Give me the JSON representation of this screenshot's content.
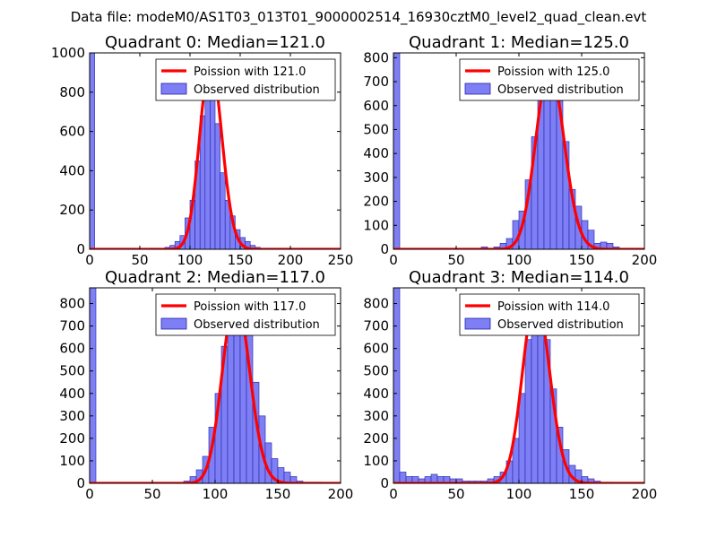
{
  "suptitle": "Data file: modeM0/AS1T03_013T01_9000002514_16930cztM0_level2_quad_clean.evt",
  "colors": {
    "hist_fill": "#7f7ff5",
    "hist_edge": "#2222aa",
    "curve": "#ff0000"
  },
  "chart_data": [
    {
      "type": "bar",
      "title": "Quadrant 0: Median=121.0",
      "median": 121,
      "legend": {
        "curve": "Poission with 121.0",
        "hist": "Observed distribution",
        "position": "top-right"
      },
      "xlim": [
        0,
        250
      ],
      "ylim": [
        0,
        1000
      ],
      "xticks": [
        0,
        50,
        100,
        150,
        200,
        250
      ],
      "yticks": [
        0,
        200,
        400,
        600,
        800,
        1000
      ],
      "bin_width": 5,
      "bin_starts": [
        0,
        75,
        80,
        85,
        90,
        95,
        100,
        105,
        110,
        115,
        120,
        125,
        130,
        135,
        140,
        145,
        150,
        155,
        160,
        165,
        170,
        175
      ],
      "values": [
        1000,
        10,
        20,
        40,
        70,
        160,
        250,
        450,
        680,
        780,
        760,
        640,
        390,
        250,
        170,
        100,
        60,
        40,
        20,
        10,
        5,
        5
      ],
      "curve_peak": 955
    },
    {
      "type": "bar",
      "title": "Quadrant 1: Median=125.0",
      "median": 125,
      "legend": {
        "curve": "Poission with 125.0",
        "hist": "Observed distribution",
        "position": "top-right"
      },
      "xlim": [
        0,
        200
      ],
      "ylim": [
        0,
        820
      ],
      "xticks": [
        0,
        50,
        100,
        150,
        200
      ],
      "yticks": [
        0,
        100,
        200,
        300,
        400,
        500,
        600,
        700,
        800
      ],
      "bin_width": 5,
      "bin_starts": [
        0,
        70,
        80,
        85,
        90,
        95,
        100,
        105,
        110,
        115,
        120,
        125,
        130,
        135,
        140,
        145,
        150,
        155,
        160,
        165,
        170,
        175
      ],
      "values": [
        820,
        10,
        10,
        25,
        45,
        120,
        160,
        290,
        470,
        630,
        750,
        760,
        620,
        450,
        250,
        180,
        120,
        80,
        25,
        30,
        25,
        10
      ],
      "curve_peak": 760
    },
    {
      "type": "bar",
      "title": "Quadrant 2: Median=117.0",
      "median": 117,
      "legend": {
        "curve": "Poission with 117.0",
        "hist": "Observed distribution",
        "position": "top-right"
      },
      "xlim": [
        0,
        200
      ],
      "ylim": [
        0,
        870
      ],
      "xticks": [
        0,
        50,
        100,
        150,
        200
      ],
      "yticks": [
        0,
        100,
        200,
        300,
        400,
        500,
        600,
        700,
        800
      ],
      "bin_width": 5,
      "bin_starts": [
        0,
        75,
        80,
        85,
        90,
        95,
        100,
        105,
        110,
        115,
        120,
        125,
        130,
        135,
        140,
        145,
        150,
        155,
        160,
        165,
        170,
        175,
        180
      ],
      "values": [
        870,
        10,
        30,
        60,
        120,
        250,
        400,
        610,
        760,
        830,
        800,
        670,
        450,
        300,
        180,
        110,
        70,
        50,
        30,
        10,
        5,
        5,
        5
      ],
      "curve_peak": 830
    },
    {
      "type": "bar",
      "title": "Quadrant 3: Median=114.0",
      "median": 114,
      "legend": {
        "curve": "Poission with 114.0",
        "hist": "Observed distribution",
        "position": "top-right"
      },
      "xlim": [
        0,
        200
      ],
      "ylim": [
        0,
        870
      ],
      "xticks": [
        0,
        50,
        100,
        150,
        200
      ],
      "yticks": [
        0,
        100,
        200,
        300,
        400,
        500,
        600,
        700,
        800
      ],
      "bin_width": 5,
      "bin_starts": [
        0,
        5,
        10,
        15,
        20,
        25,
        30,
        35,
        40,
        45,
        50,
        55,
        60,
        65,
        70,
        75,
        80,
        85,
        90,
        95,
        100,
        105,
        110,
        115,
        120,
        125,
        130,
        135,
        140,
        145,
        150,
        155,
        160,
        165,
        170
      ],
      "values": [
        870,
        50,
        30,
        30,
        20,
        30,
        40,
        30,
        30,
        20,
        20,
        10,
        10,
        10,
        10,
        20,
        30,
        50,
        100,
        200,
        400,
        640,
        800,
        790,
        640,
        420,
        250,
        150,
        80,
        60,
        30,
        20,
        10,
        5,
        5
      ],
      "curve_peak": 830
    }
  ]
}
